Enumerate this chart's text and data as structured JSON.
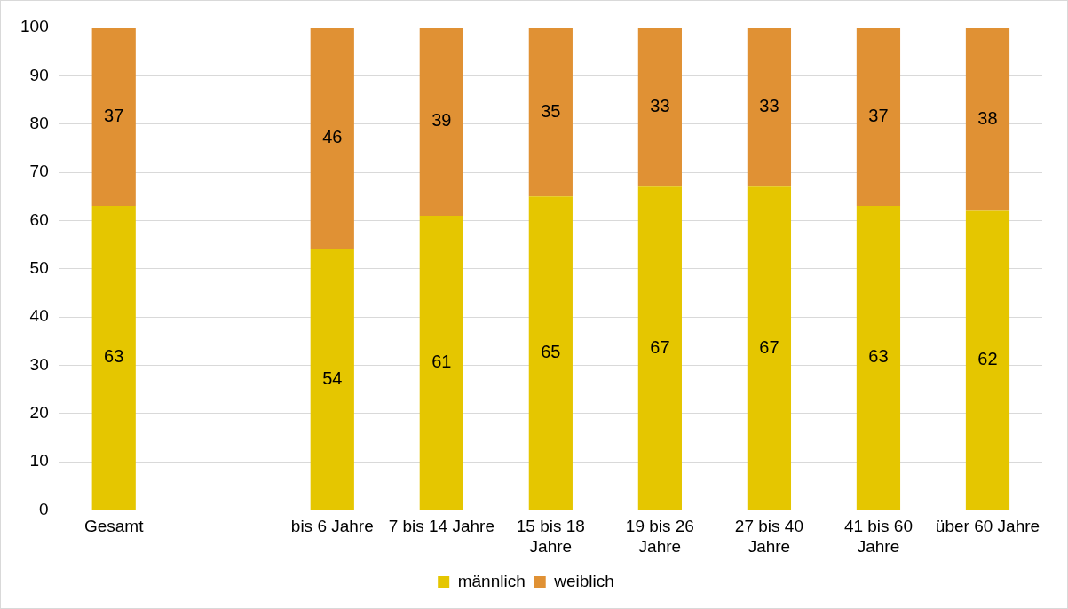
{
  "chart_data": {
    "type": "bar",
    "stacked": true,
    "categories": [
      "Gesamt",
      null,
      "bis 6 Jahre",
      "7 bis 14 Jahre",
      "15 bis 18 Jahre",
      "19 bis 26 Jahre",
      "27 bis 40 Jahre",
      "41 bis 60 Jahre",
      "über 60 Jahre"
    ],
    "series": [
      {
        "name": "männlich",
        "color": "#e5c600",
        "values": [
          63,
          null,
          54,
          61,
          65,
          67,
          67,
          63,
          62
        ]
      },
      {
        "name": "weiblich",
        "color": "#e09134",
        "values": [
          37,
          null,
          46,
          39,
          35,
          33,
          33,
          37,
          38
        ]
      }
    ],
    "ylim": [
      0,
      100
    ],
    "yticks": [
      0,
      10,
      20,
      30,
      40,
      50,
      60,
      70,
      80,
      90,
      100
    ],
    "grid": "y",
    "legend": "bottom",
    "data_labels": true
  }
}
